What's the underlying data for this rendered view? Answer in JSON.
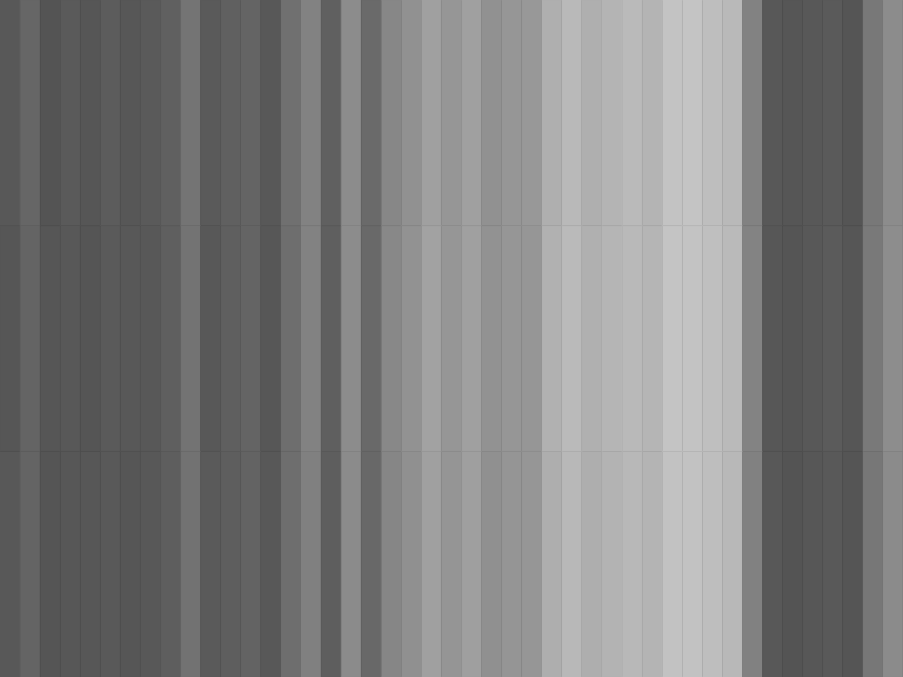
{
  "chart_data": {
    "type": "heatmap",
    "zlim": [
      0,
      255
    ],
    "tick_labels": false,
    "cells": [
      [
        88,
        102,
        84,
        90,
        86,
        92,
        87,
        90,
        96,
        116,
        90,
        96,
        100,
        88,
        112,
        130,
        96,
        140,
        106,
        135,
        145,
        160,
        150,
        160,
        145,
        150,
        152,
        175,
        185,
        175,
        180,
        186,
        180,
        195,
        196,
        190,
        185,
        130,
        88,
        86,
        88,
        90,
        85,
        120,
        140
      ],
      [
        86,
        100,
        86,
        88,
        85,
        90,
        88,
        88,
        95,
        115,
        88,
        95,
        100,
        87,
        110,
        130,
        95,
        140,
        105,
        136,
        146,
        162,
        150,
        160,
        146,
        150,
        150,
        177,
        186,
        176,
        181,
        185,
        181,
        196,
        195,
        191,
        186,
        131,
        87,
        85,
        88,
        91,
        86,
        121,
        141
      ],
      [
        88,
        100,
        85,
        87,
        87,
        89,
        86,
        88,
        94,
        114,
        90,
        94,
        99,
        88,
        110,
        128,
        94,
        139,
        104,
        134,
        144,
        160,
        149,
        159,
        144,
        149,
        150,
        174,
        184,
        174,
        179,
        184,
        180,
        194,
        194,
        190,
        184,
        129,
        88,
        84,
        87,
        89,
        85,
        119,
        139
      ]
    ]
  }
}
